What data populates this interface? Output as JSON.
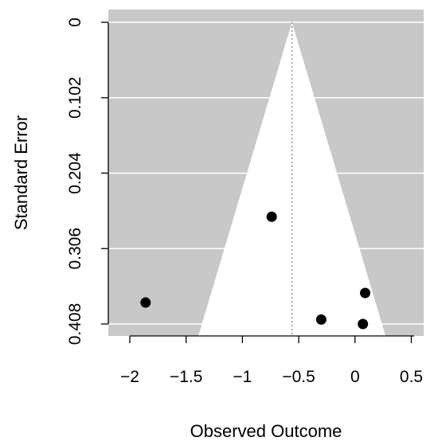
{
  "chart_data": {
    "type": "scatter",
    "subtype": "funnel plot",
    "title": "",
    "xlabel": "Observed Outcome",
    "ylabel": "Standard Error",
    "xlim": [
      -2.2,
      0.55
    ],
    "ylim": [
      0.408,
      0
    ],
    "y_reversed": true,
    "x_ticks": [
      -2,
      -1.5,
      -1,
      -0.5,
      0,
      0.5
    ],
    "x_tick_labels": [
      "−2",
      "−1.5",
      "−1",
      "−0.5",
      "0",
      "0.5"
    ],
    "y_ticks": [
      0,
      0.102,
      0.204,
      0.306,
      0.408
    ],
    "y_tick_labels": [
      "0",
      "0.102",
      "0.204",
      "0.306",
      "0.408"
    ],
    "summary_estimate": -0.56,
    "funnel_z": 1.96,
    "grid": "horizontal white lines at y ticks",
    "colors": {
      "panel_background": "#c8c8c8",
      "funnel_fill": "#ffffff",
      "points": "#000000",
      "center_line": "#888888"
    },
    "points": [
      {
        "x": -1.86,
        "y": 0.379
      },
      {
        "x": -0.74,
        "y": 0.263
      },
      {
        "x": 0.09,
        "y": 0.366
      },
      {
        "x": -0.3,
        "y": 0.402
      },
      {
        "x": 0.07,
        "y": 0.408
      }
    ]
  }
}
